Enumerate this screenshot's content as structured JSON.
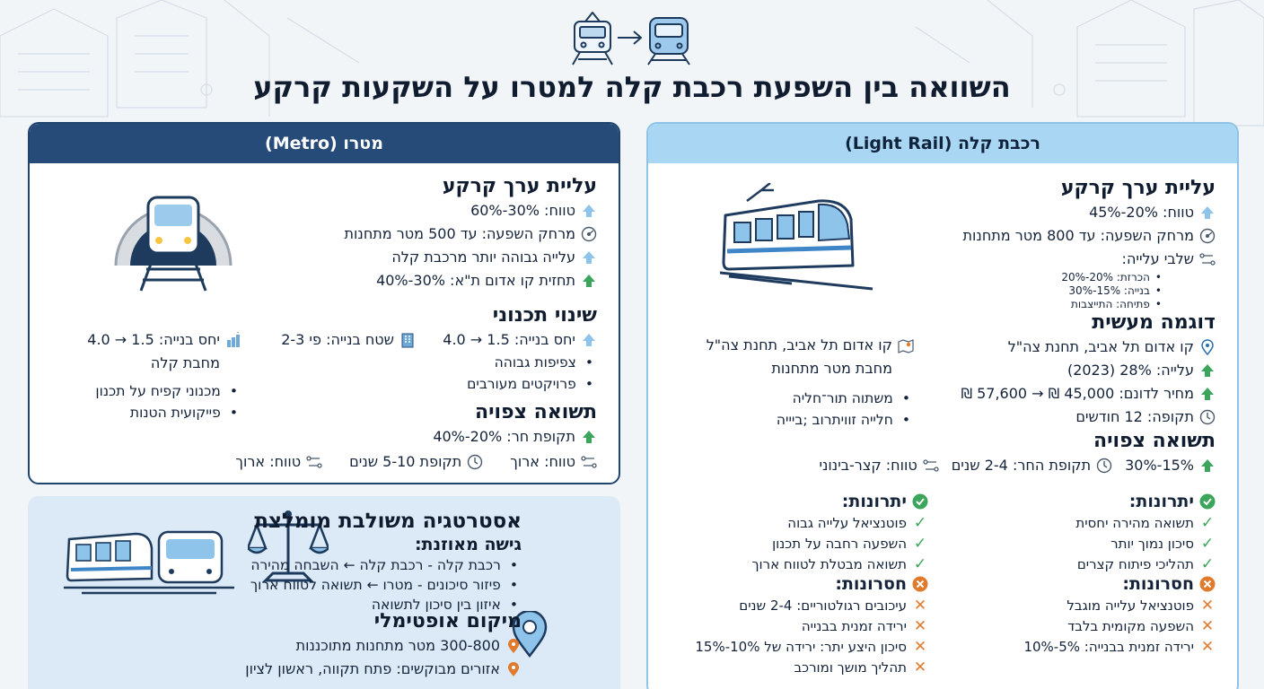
{
  "title": "השוואה בין השפעת רכבת קלה למטרו על השקעות קרקע",
  "metro": {
    "header": "מטרו (Metro)",
    "land_value": {
      "heading": "עליית ערך קרקע",
      "rows": [
        "טווח: 30%-60%",
        "מרחק השפעה: עד 500 מטר מתחנות",
        "עלייה גבוהה יותר מרכבת קלה",
        "תחזית קו אדום ת\"א: 30%-40%"
      ]
    },
    "planning": {
      "heading": "שינוי תכנוני",
      "col_right": {
        "row": "יחס בנייה: 1.5 → 4.0",
        "bullets": [
          "צפיפות גבוהה",
          "פרויקטים מעורבים"
        ]
      },
      "col_mid": {
        "row": "שטח בנייה: פי 2-3"
      },
      "col_left": {
        "row": "יחס בנייה: 1.5 → 4.0",
        "row2": "מחבת קלה",
        "bullets": [
          "מכנוני קפיח על תכנון",
          "פייקועית הטנות"
        ]
      }
    },
    "return": {
      "heading": "תשואה צפויה",
      "rows": [
        "תקופת חר: 20%-40%",
        "טווח: ארוך",
        "תקופת 5-10 שנים",
        "טווח: ארוך"
      ]
    }
  },
  "rail": {
    "header": "רכבת קלה (Light Rail)",
    "land_value": {
      "heading": "עליית ערך קרקע",
      "rows": [
        "טווח: 20%-45%",
        "מרחק השפעה: עד 800 מטר מתחנות",
        "שלבי עלייה:"
      ],
      "stages": [
        "הכרזת: 20%-20%",
        "בנייה: 15%-30%",
        "פתיחה: התייצבות"
      ]
    },
    "example": {
      "heading": "דוגמה מעשית",
      "rows": [
        "קו אדום תל אביב, תחנת צה\"ל",
        "עלייה: 28% (2023)",
        "מחיר לדונם: 45,000 ₪ → 57,600 ₪",
        "תקופה: 12 חודשים"
      ],
      "side": {
        "row1": "קו אדום תל אביב, תחנת צה\"ל",
        "row2": "מחבת מטר מתחנות",
        "bullets": [
          "משתוה תור־חליה",
          "חלייה זוויתרוב ;ביייה"
        ]
      }
    },
    "return": {
      "heading": "תשואה צפויה",
      "rows": [
        "15%-30%",
        "תקופת החר: 2-4 שנים",
        "טווח: קצר-בינוני"
      ]
    },
    "pros_right": {
      "heading": "יתרונות:",
      "items": [
        "תשואה מהירה יחסית",
        "סיכון נמוך יותר",
        "תהליכי פיתוח קצרים"
      ]
    },
    "pros_left": {
      "heading": "יתרונות:",
      "items": [
        "פוטנציאל עלייה גבוה",
        "השפעה רחבה על תכנון",
        "תשואה מבטלת לטווח ארוך"
      ]
    },
    "cons_right": {
      "heading": "חסרונות:",
      "items": [
        "פוטנציאל עלייה מוגבל",
        "השפעה מקומית בלבד",
        "ירידה זמנית בבנייה: 5%-10%"
      ]
    },
    "cons_left": {
      "heading": "חסרונות:",
      "items": [
        "עיכובים רגולטוריים: 2-4 שנים",
        "ירידה זמנית בבנייה",
        "סיכון היצע יתר: ירידה של 10%-15%",
        "תהליך מושך ומורכב"
      ]
    }
  },
  "strategy": {
    "heading": "אסטרטגיה משולבת מומלצת",
    "balanced": {
      "heading": "גישה מאוזנת:",
      "bullets": [
        "רכבת קלה - רכבת קלה ← השבחה מהירה",
        "פיזור סיכונים - מטרו ← תשואה לטווח ארוך",
        "איזון בין סיכון לתשואה"
      ]
    },
    "location": {
      "heading": "מיקום אופטימלי",
      "rows": [
        "300-800 מטר מתחנות מתוכננות",
        "אזורים מבוקשים: פתח תקווה, ראשון לציון"
      ]
    }
  }
}
